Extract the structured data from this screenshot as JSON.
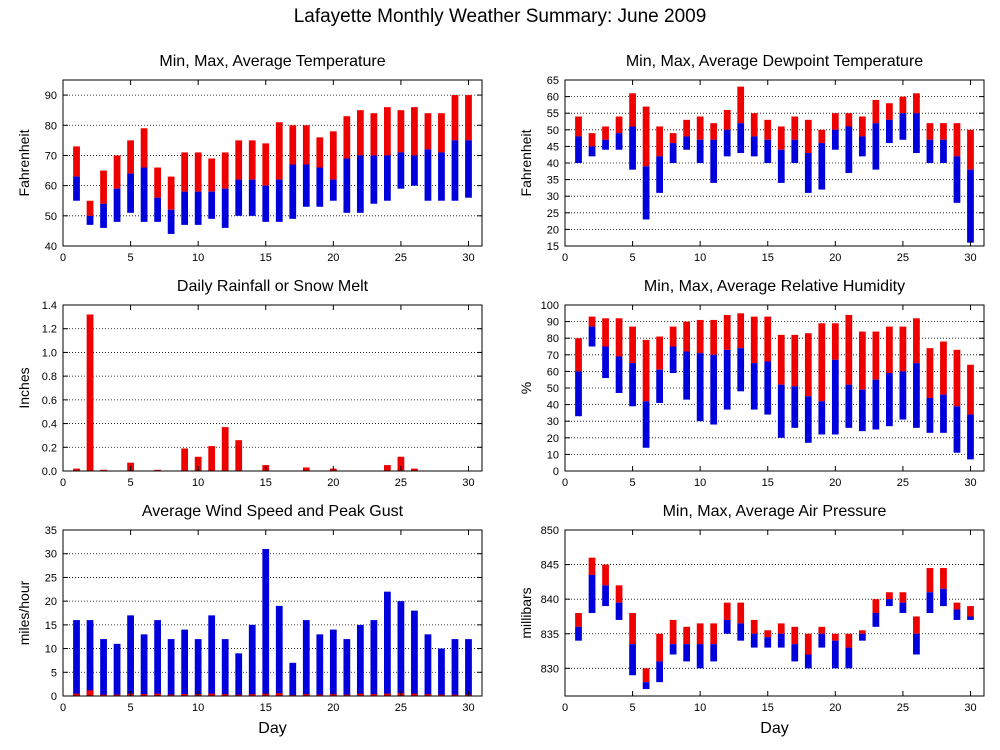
{
  "main_title": "Lafayette Monthly Weather Summary: June 2009",
  "colors": {
    "max": "#ee0000",
    "min": "#0000dd",
    "frame": "#000000",
    "grid": "#000000"
  },
  "chart_data": [
    {
      "type": "bar",
      "title": "Min, Max, Average Temperature",
      "xlabel": "",
      "ylabel": "Fahrenheit",
      "xlim": [
        0,
        31
      ],
      "ylim": [
        40,
        95
      ],
      "yticks": [
        40,
        50,
        60,
        70,
        80,
        90
      ],
      "xticks": [
        0,
        5,
        10,
        15,
        20,
        25,
        30
      ],
      "grid": true,
      "days": [
        1,
        2,
        3,
        4,
        5,
        6,
        7,
        8,
        9,
        10,
        11,
        12,
        13,
        14,
        15,
        16,
        17,
        18,
        19,
        20,
        21,
        22,
        23,
        24,
        25,
        26,
        27,
        28,
        29,
        30
      ],
      "series": [
        {
          "name": "Min",
          "values": [
            55,
            47,
            46,
            48,
            51,
            48,
            48,
            44,
            47,
            47,
            49,
            46,
            50,
            50,
            48,
            48,
            49,
            53,
            53,
            55,
            51,
            51,
            54,
            55,
            59,
            60,
            55,
            55,
            55,
            56
          ]
        },
        {
          "name": "Average",
          "values": [
            63,
            50,
            54,
            59,
            64,
            66,
            56,
            52,
            58,
            58,
            58,
            59,
            62,
            62,
            60,
            62,
            67,
            67,
            66,
            62,
            69,
            70,
            70,
            70,
            71,
            70,
            72,
            71,
            75,
            75
          ]
        },
        {
          "name": "Max",
          "values": [
            73,
            55,
            65,
            70,
            75,
            79,
            66,
            63,
            71,
            71,
            69,
            71,
            75,
            75,
            74,
            81,
            80,
            80,
            76,
            78,
            83,
            85,
            84,
            86,
            85,
            86,
            84,
            84,
            90,
            90
          ]
        }
      ]
    },
    {
      "type": "bar",
      "title": "Min, Max, Average Dewpoint Temperature",
      "xlabel": "",
      "ylabel": "Fahrenheit",
      "xlim": [
        0,
        31
      ],
      "ylim": [
        15,
        65
      ],
      "yticks": [
        15,
        20,
        25,
        30,
        35,
        40,
        45,
        50,
        55,
        60,
        65
      ],
      "xticks": [
        0,
        5,
        10,
        15,
        20,
        25,
        30
      ],
      "grid": true,
      "days": [
        1,
        2,
        3,
        4,
        5,
        6,
        7,
        8,
        9,
        10,
        11,
        12,
        13,
        14,
        15,
        16,
        17,
        18,
        19,
        20,
        21,
        22,
        23,
        24,
        25,
        26,
        27,
        28,
        29,
        30
      ],
      "series": [
        {
          "name": "Min",
          "values": [
            40,
            42,
            44,
            44,
            38,
            23,
            31,
            40,
            44,
            40,
            34,
            42,
            43,
            42,
            40,
            34,
            40,
            31,
            32,
            44,
            37,
            42,
            38,
            46,
            47,
            43,
            40,
            40,
            28,
            16
          ]
        },
        {
          "name": "Average",
          "values": [
            48,
            45,
            47,
            49,
            51,
            39,
            42,
            46,
            48,
            47,
            47,
            50,
            52,
            48,
            47,
            44,
            47,
            43,
            46,
            50,
            51,
            48,
            52,
            53,
            55,
            55,
            47,
            47,
            42,
            38
          ]
        },
        {
          "name": "Max",
          "values": [
            54,
            49,
            51,
            54,
            61,
            57,
            51,
            49,
            53,
            54,
            52,
            56,
            63,
            55,
            53,
            51,
            54,
            53,
            50,
            55,
            55,
            54,
            59,
            58,
            60,
            61,
            52,
            52,
            52,
            50
          ]
        }
      ]
    },
    {
      "type": "bar",
      "title": "Daily Rainfall or Snow Melt",
      "xlabel": "",
      "ylabel": "Inches",
      "xlim": [
        0,
        31
      ],
      "ylim": [
        0,
        1.4
      ],
      "yticks": [
        0.0,
        0.2,
        0.4,
        0.6,
        0.8,
        1.0,
        1.2,
        1.4
      ],
      "ytick_labels": [
        "0.0",
        "0.2",
        "0.4",
        "0.6",
        "0.8",
        "1.0",
        "1.2",
        "1.4"
      ],
      "xticks": [
        0,
        5,
        10,
        15,
        20,
        25,
        30
      ],
      "grid": true,
      "days": [
        1,
        2,
        3,
        4,
        5,
        6,
        7,
        8,
        9,
        10,
        11,
        12,
        13,
        14,
        15,
        16,
        17,
        18,
        19,
        20,
        21,
        22,
        23,
        24,
        25,
        26,
        27,
        28,
        29,
        30
      ],
      "values": [
        0.02,
        1.32,
        0.01,
        0,
        0.07,
        0,
        0.01,
        0,
        0.19,
        0.12,
        0.21,
        0.37,
        0.26,
        0,
        0.05,
        0,
        0,
        0.03,
        0,
        0.02,
        0,
        0,
        0,
        0.05,
        0.12,
        0.02,
        0,
        0,
        0,
        0
      ]
    },
    {
      "type": "bar",
      "title": "Min, Max, Average Relative Humidity",
      "xlabel": "",
      "ylabel": "%",
      "xlim": [
        0,
        31
      ],
      "ylim": [
        0,
        100
      ],
      "yticks": [
        0,
        10,
        20,
        30,
        40,
        50,
        60,
        70,
        80,
        90,
        100
      ],
      "xticks": [
        0,
        5,
        10,
        15,
        20,
        25,
        30
      ],
      "grid": true,
      "days": [
        1,
        2,
        3,
        4,
        5,
        6,
        7,
        8,
        9,
        10,
        11,
        12,
        13,
        14,
        15,
        16,
        17,
        18,
        19,
        20,
        21,
        22,
        23,
        24,
        25,
        26,
        27,
        28,
        29,
        30
      ],
      "series": [
        {
          "name": "Min",
          "values": [
            33,
            75,
            56,
            47,
            39,
            14,
            41,
            59,
            43,
            30,
            28,
            37,
            48,
            37,
            34,
            20,
            26,
            17,
            22,
            22,
            26,
            24,
            25,
            27,
            31,
            26,
            23,
            23,
            11,
            7
          ]
        },
        {
          "name": "Average",
          "values": [
            60,
            87,
            75,
            69,
            65,
            42,
            61,
            75,
            72,
            71,
            70,
            73,
            74,
            65,
            66,
            52,
            51,
            45,
            42,
            67,
            52,
            49,
            55,
            59,
            60,
            65,
            44,
            46,
            39,
            34
          ]
        },
        {
          "name": "Max",
          "values": [
            80,
            93,
            92,
            92,
            87,
            79,
            81,
            87,
            90,
            91,
            91,
            94,
            95,
            93,
            93,
            82,
            82,
            83,
            89,
            89,
            94,
            84,
            84,
            87,
            87,
            92,
            74,
            78,
            73,
            64
          ]
        }
      ]
    },
    {
      "type": "bar",
      "title": "Average Wind Speed and Peak Gust",
      "xlabel": "Day",
      "ylabel": "miles/hour",
      "xlim": [
        0,
        31
      ],
      "ylim": [
        0,
        35
      ],
      "yticks": [
        0,
        5,
        10,
        15,
        20,
        25,
        30,
        35
      ],
      "xticks": [
        0,
        5,
        10,
        15,
        20,
        25,
        30
      ],
      "grid": true,
      "days": [
        1,
        2,
        3,
        4,
        5,
        6,
        7,
        8,
        9,
        10,
        11,
        12,
        13,
        14,
        15,
        16,
        17,
        18,
        19,
        20,
        21,
        22,
        23,
        24,
        25,
        26,
        27,
        28,
        29,
        30
      ],
      "series": [
        {
          "name": "Average",
          "values": [
            0.5,
            1.2,
            0.3,
            0.3,
            0.5,
            0.4,
            0.5,
            0.3,
            0.4,
            0.4,
            0.5,
            0.4,
            0.3,
            0.4,
            0.5,
            0.6,
            0.2,
            0.4,
            0.3,
            0.4,
            0.3,
            0.5,
            0.4,
            0.5,
            0.6,
            0.5,
            0.4,
            0.3,
            0.3,
            0.3
          ]
        },
        {
          "name": "Peak Gust",
          "values": [
            16,
            16,
            12,
            11,
            17,
            13,
            16,
            12,
            14,
            12,
            17,
            12,
            9,
            15,
            31,
            19,
            7,
            16,
            13,
            14,
            12,
            15,
            16,
            22,
            20,
            18,
            13,
            10,
            12,
            12
          ]
        }
      ]
    },
    {
      "type": "bar",
      "title": "Min, Max, Average Air Pressure",
      "xlabel": "Day",
      "ylabel": "millibars",
      "xlim": [
        0,
        31
      ],
      "ylim": [
        826,
        850
      ],
      "yticks": [
        830,
        835,
        840,
        845,
        850
      ],
      "xticks": [
        0,
        5,
        10,
        15,
        20,
        25,
        30
      ],
      "grid": true,
      "days": [
        1,
        2,
        3,
        4,
        5,
        6,
        7,
        8,
        9,
        10,
        11,
        12,
        13,
        14,
        15,
        16,
        17,
        18,
        19,
        20,
        21,
        22,
        23,
        24,
        25,
        26,
        27,
        28,
        29,
        30
      ],
      "series": [
        {
          "name": "Min",
          "values": [
            834,
            838,
            839,
            837,
            829,
            827,
            828,
            832,
            831,
            830,
            831,
            835,
            834,
            833,
            833,
            833,
            831,
            830,
            833,
            830,
            830,
            834,
            836,
            839,
            838,
            832,
            838,
            839,
            837,
            837
          ]
        },
        {
          "name": "Average",
          "values": [
            836,
            843.5,
            842,
            839.5,
            833.5,
            828,
            831,
            833.5,
            833.5,
            833.5,
            833.5,
            837,
            836.5,
            835,
            834.5,
            835,
            833.5,
            832,
            835,
            834,
            833,
            835,
            838,
            840,
            839.5,
            835,
            841,
            841.5,
            838.5,
            837.5
          ]
        },
        {
          "name": "Max",
          "values": [
            838,
            846,
            845,
            842,
            838,
            830,
            835,
            837,
            836,
            836.5,
            836.5,
            839.5,
            839.5,
            837,
            835.5,
            836.5,
            836,
            835,
            836,
            835,
            835,
            835.5,
            840,
            841,
            841,
            837.5,
            844.5,
            844.5,
            839.5,
            839
          ]
        }
      ]
    }
  ]
}
